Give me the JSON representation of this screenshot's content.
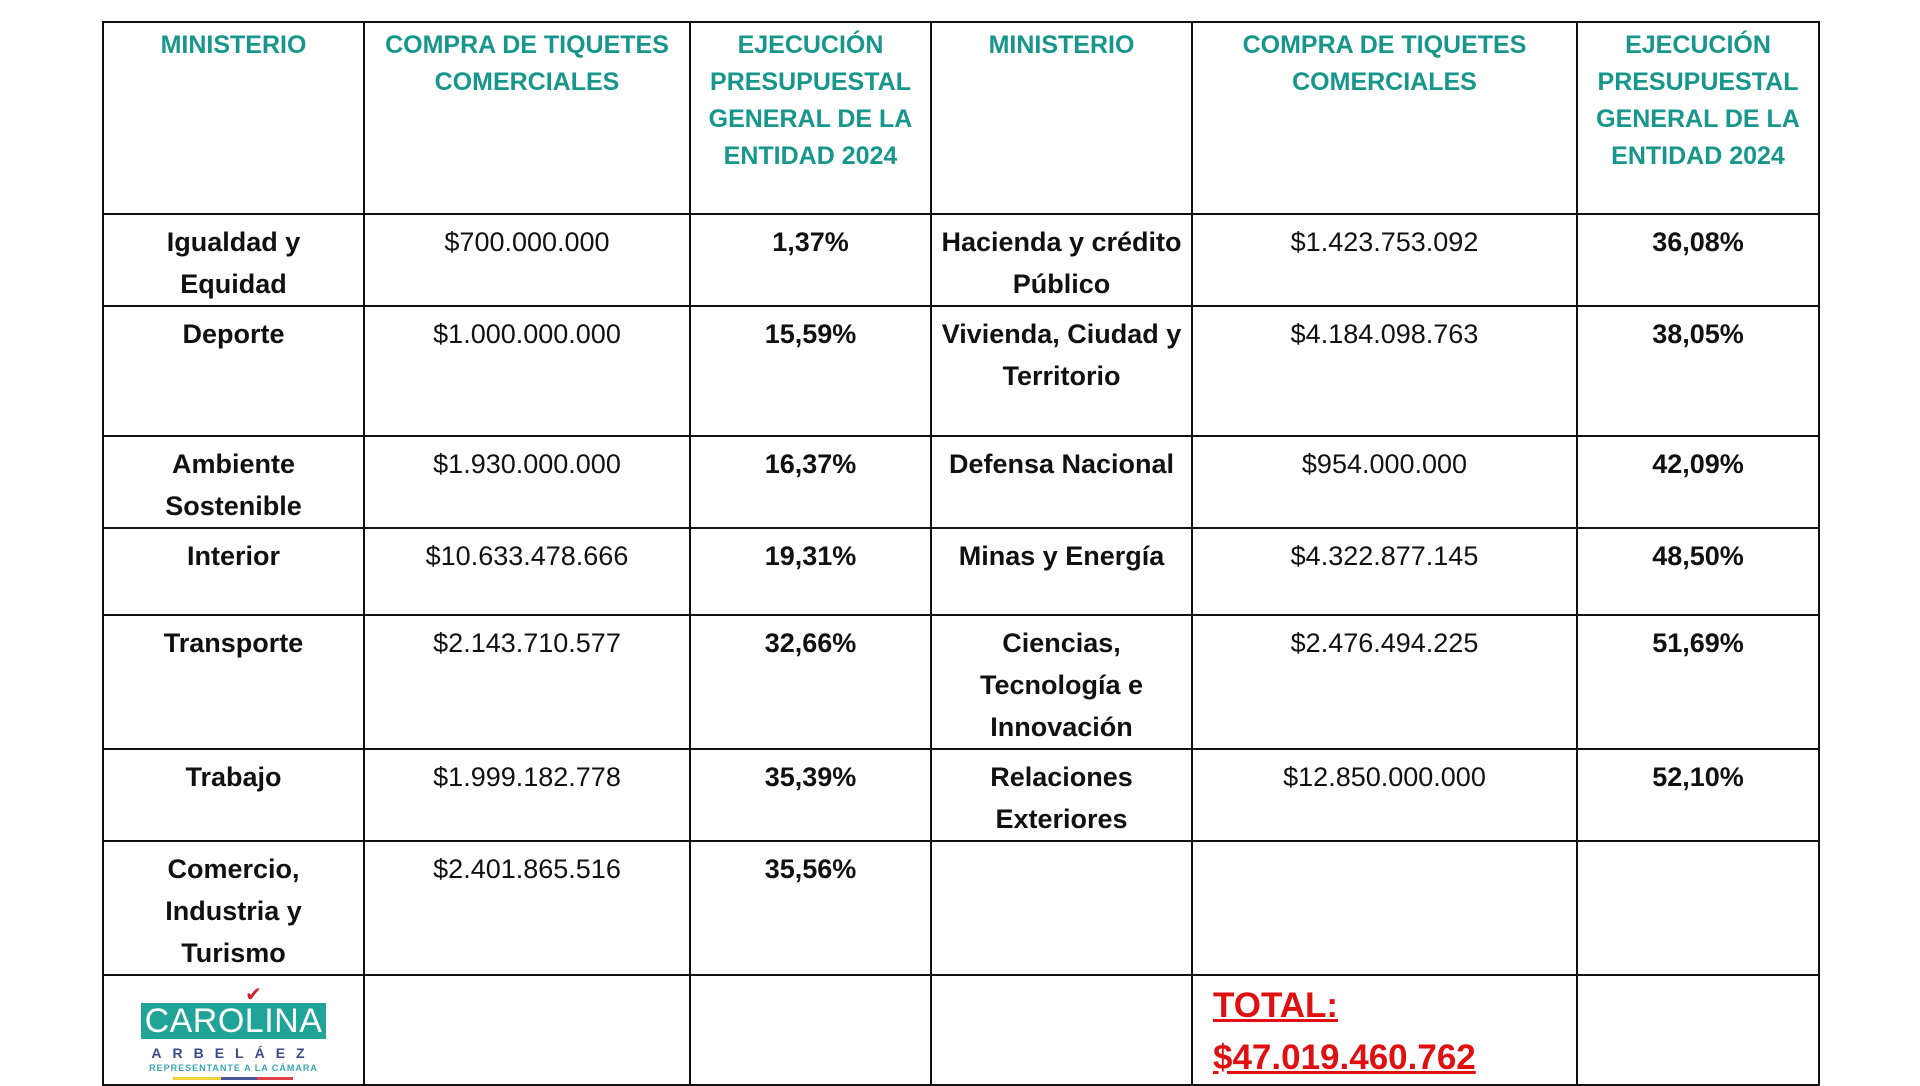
{
  "colors": {
    "header": "#17968c",
    "total": "#e01010",
    "logo_bg": "#1fa497"
  },
  "headers": [
    "MINISTERIO",
    "COMPRA DE TIQUETES COMERCIALES",
    "EJECUCIÓN PRESUPUESTAL GENERAL DE LA ENTIDAD 2024",
    "MINISTERIO",
    "COMPRA DE TIQUETES COMERCIALES",
    "EJECUCIÓN PRESUPUESTAL GENERAL DE LA ENTIDAD 2024"
  ],
  "rows": [
    [
      "Igualdad y Equidad",
      "$700.000.000",
      "1,37%",
      "Hacienda y crédito Público",
      "$1.423.753.092",
      "36,08%"
    ],
    [
      "Deporte",
      "$1.000.000.000",
      "15,59%",
      "Vivienda, Ciudad y Territorio",
      "$4.184.098.763",
      "38,05%"
    ],
    [
      "Ambiente Sostenible",
      "$1.930.000.000",
      "16,37%",
      "Defensa Nacional",
      "$954.000.000",
      "42,09%"
    ],
    [
      "Interior",
      "$10.633.478.666",
      "19,31%",
      "Minas y Energía",
      "$4.322.877.145",
      "48,50%"
    ],
    [
      "Transporte",
      "$2.143.710.577",
      "32,66%",
      "Ciencias, Tecnología e Innovación",
      "$2.476.494.225",
      "51,69%"
    ],
    [
      "Trabajo",
      "$1.999.182.778",
      "35,39%",
      "Relaciones Exteriores",
      "$12.850.000.000",
      "52,10%"
    ],
    [
      "Comercio, Industria y Turismo",
      "$2.401.865.516",
      "35,56%",
      "",
      "",
      ""
    ]
  ],
  "logo": {
    "name": "CAROLINA",
    "surname": "ARBELÁEZ",
    "subtitle": "REPRESENTANTE A LA CÁMARA"
  },
  "total": {
    "label": "TOTAL:",
    "value": "$47.019.460.762"
  }
}
